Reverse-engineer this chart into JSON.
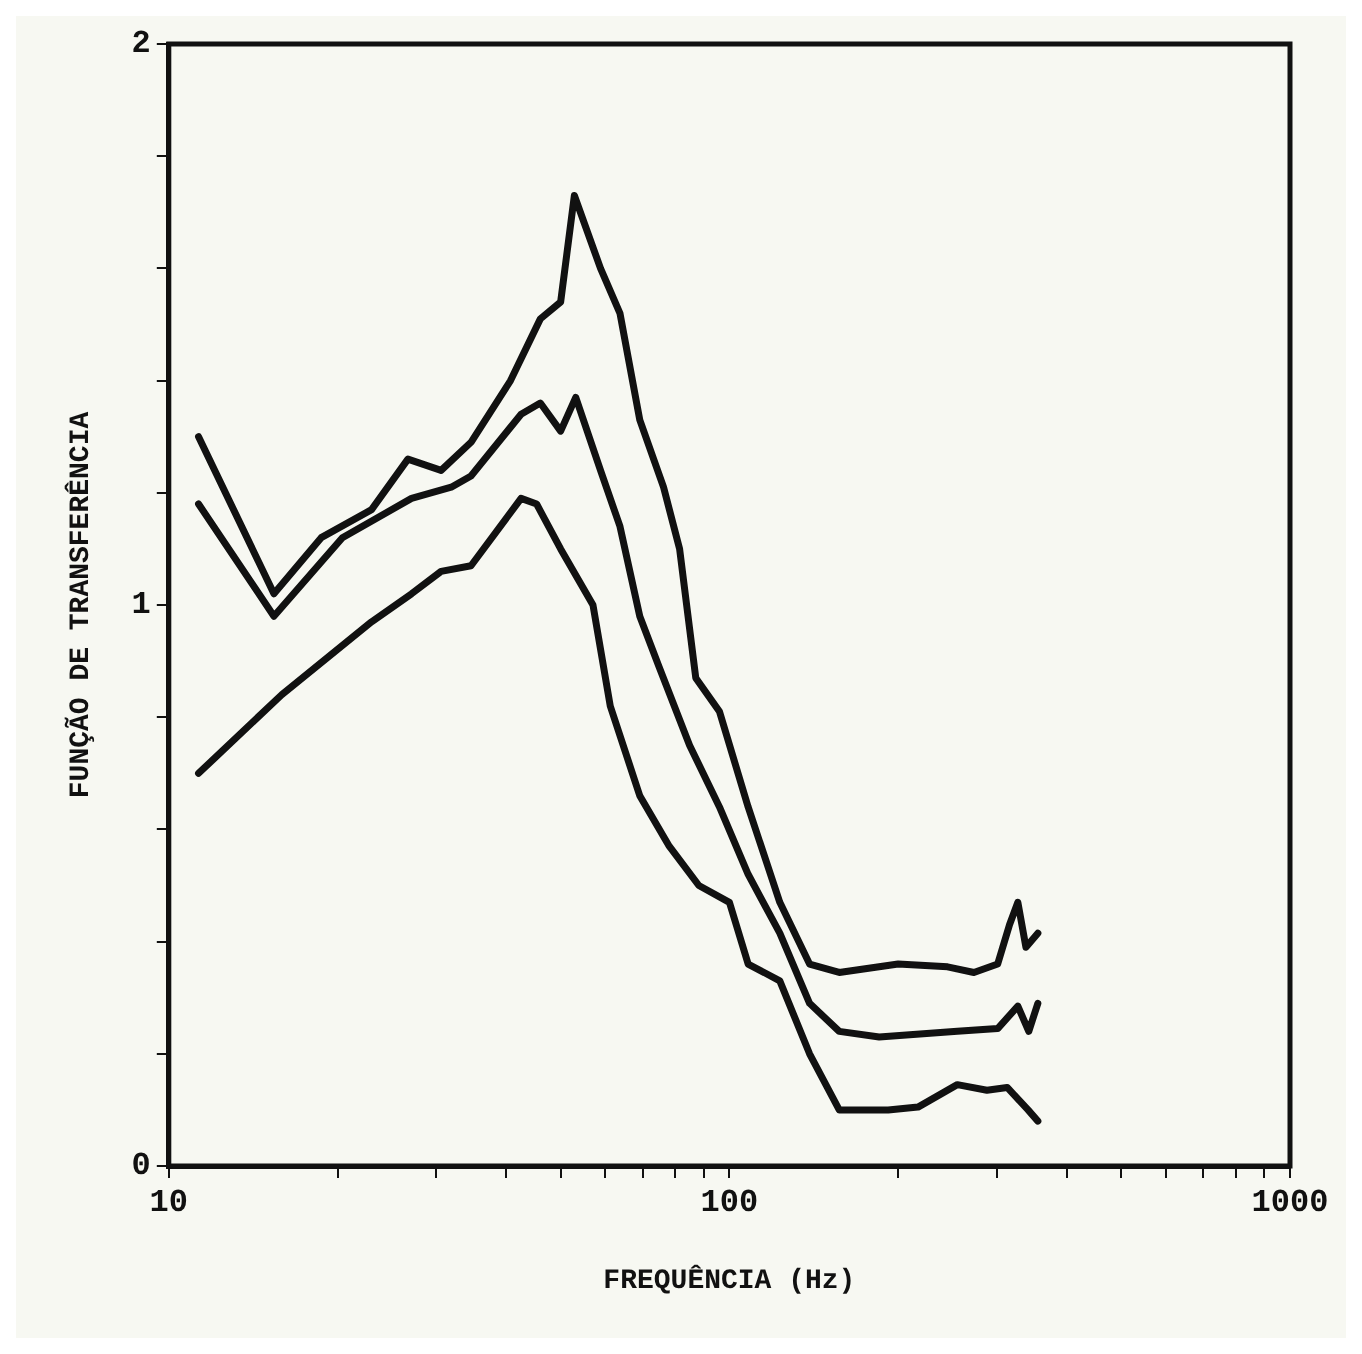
{
  "chart_data": {
    "type": "line",
    "xlabel": "FREQUÊNCIA (Hz)",
    "ylabel": "FUNÇÃO DE TRANSFERÊNCIA",
    "log": "x",
    "xlim": [
      10,
      1000
    ],
    "ylim": [
      0,
      2
    ],
    "xticks": [
      10,
      {
        "value": 20,
        "label": null
      },
      {
        "value": 30,
        "label": null
      },
      {
        "value": 40,
        "label": null
      },
      {
        "value": 50,
        "label": null
      },
      {
        "value": 60,
        "label": null
      },
      {
        "value": 70,
        "label": null
      },
      {
        "value": 80,
        "label": null
      },
      {
        "value": 90,
        "label": null
      },
      100,
      {
        "value": 200,
        "label": null
      },
      {
        "value": 300,
        "label": null
      },
      {
        "value": 400,
        "label": null
      },
      {
        "value": 500,
        "label": null
      },
      {
        "value": 600,
        "label": null
      },
      {
        "value": 700,
        "label": null
      },
      {
        "value": 800,
        "label": null
      },
      {
        "value": 900,
        "label": null
      },
      1000
    ],
    "yticks": [
      0,
      {
        "value": 0.2,
        "label": null
      },
      {
        "value": 0.4,
        "label": null
      },
      {
        "value": 0.6,
        "label": null
      },
      {
        "value": 0.8,
        "label": null
      },
      1,
      {
        "value": 1.2,
        "label": null
      },
      {
        "value": 1.4,
        "label": null
      },
      {
        "value": 1.6,
        "label": null
      },
      {
        "value": 1.8,
        "label": null
      },
      2
    ],
    "grid": false,
    "legend": false,
    "marker": "none",
    "line_style": "solid",
    "series": [
      {
        "color": "#111111",
        "x": [
          11.3,
          15.4,
          18.7,
          23.0,
          26.7,
          30.6,
          34.6,
          40.7,
          46.0,
          50.0,
          52.9,
          58.9,
          63.8,
          69.2,
          76.3,
          81.5,
          87.1,
          96,
          108,
          123,
          139,
          157,
          200,
          245,
          273,
          301,
          316,
          327,
          338,
          355
        ],
        "values": [
          1.3,
          1.02,
          1.12,
          1.17,
          1.26,
          1.24,
          1.29,
          1.4,
          1.51,
          1.54,
          1.73,
          1.6,
          1.52,
          1.33,
          1.21,
          1.1,
          0.87,
          0.81,
          0.64,
          0.47,
          0.36,
          0.345,
          0.36,
          0.355,
          0.345,
          0.36,
          0.43,
          0.47,
          0.39,
          0.415
        ]
      },
      {
        "color": "#111111",
        "x": [
          11.3,
          15.4,
          20.4,
          27.1,
          31.9,
          34.6,
          42.5,
          46.0,
          50,
          53.2,
          58.9,
          63.8,
          69.2,
          74.9,
          84.9,
          96,
          108,
          123,
          139,
          157,
          185,
          255,
          301,
          327,
          342,
          355
        ],
        "values": [
          1.18,
          0.98,
          1.12,
          1.19,
          1.21,
          1.23,
          1.34,
          1.36,
          1.31,
          1.37,
          1.24,
          1.14,
          0.98,
          0.89,
          0.75,
          0.64,
          0.52,
          0.415,
          0.29,
          0.24,
          0.23,
          0.24,
          0.245,
          0.285,
          0.24,
          0.29
        ]
      },
      {
        "color": "#111111",
        "x": [
          11.3,
          15.9,
          23.0,
          27.1,
          30.6,
          34.6,
          42.5,
          45.3,
          50,
          57.1,
          61.3,
          69.2,
          78.1,
          88.2,
          100,
          108,
          123,
          139,
          157,
          192,
          217,
          255,
          288,
          313,
          341,
          355
        ],
        "values": [
          0.7,
          0.84,
          0.97,
          1.02,
          1.06,
          1.07,
          1.19,
          1.18,
          1.1,
          1.0,
          0.82,
          0.66,
          0.57,
          0.5,
          0.47,
          0.36,
          0.33,
          0.2,
          0.1,
          0.1,
          0.105,
          0.145,
          0.135,
          0.14,
          0.1,
          0.08
        ]
      }
    ]
  }
}
